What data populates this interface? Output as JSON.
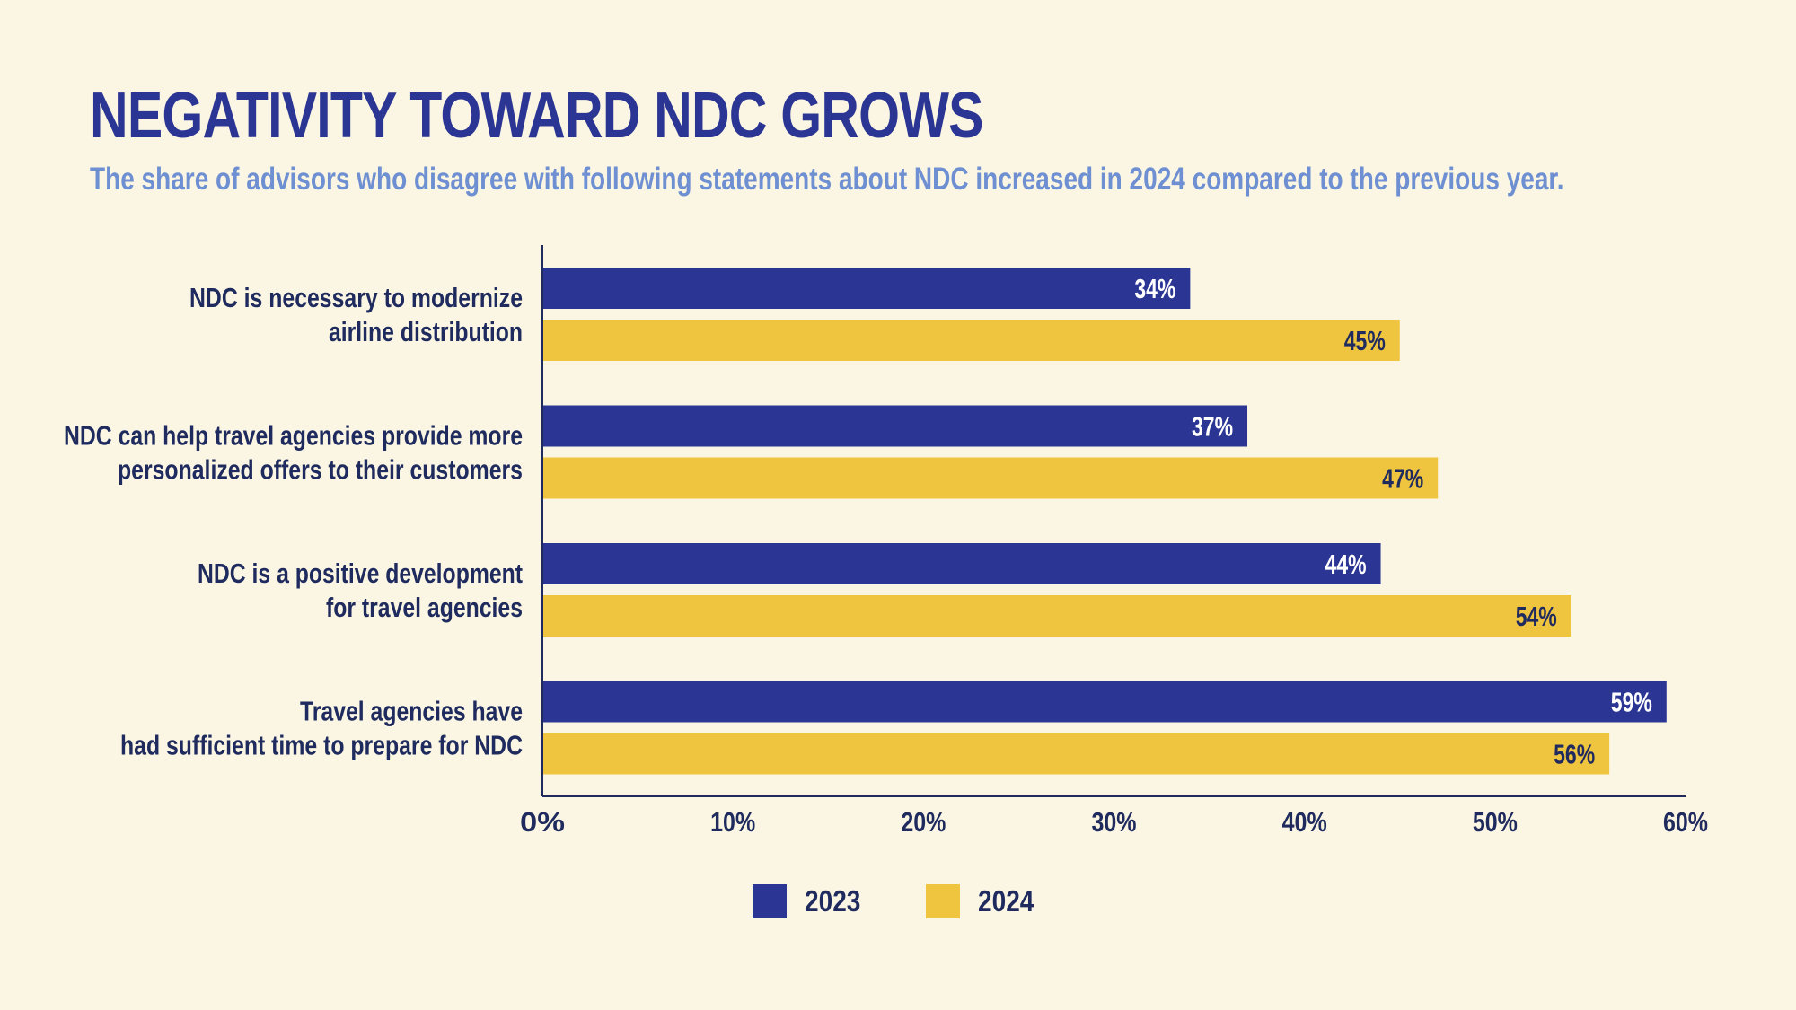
{
  "title": "NEGATIVITY TOWARD NDC GROWS",
  "subtitle": "The share of advisors who disagree with following statements about NDC increased in 2024 compared to the previous year.",
  "colors": {
    "series_2023": "#2b3593",
    "series_2024": "#efc43f",
    "text_dark": "#1f2b5e",
    "background": "#fbf6e3"
  },
  "chart_data": {
    "type": "bar",
    "orientation": "horizontal",
    "categories": [
      [
        "NDC is necessary to modernize",
        "airline distribution"
      ],
      [
        "NDC can help travel agencies provide more",
        "personalized offers to their customers"
      ],
      [
        "NDC is a positive development",
        "for travel agencies"
      ],
      [
        "Travel agencies have",
        "had sufficient time to prepare for NDC"
      ]
    ],
    "series": [
      {
        "name": "2023",
        "values": [
          34,
          37,
          44,
          59
        ],
        "labels": [
          "34%",
          "37%",
          "44%",
          "59%"
        ]
      },
      {
        "name": "2024",
        "values": [
          45,
          47,
          54,
          56
        ],
        "labels": [
          "45%",
          "47%",
          "54%",
          "56%"
        ]
      }
    ],
    "xlim": [
      0,
      60
    ],
    "xticks": [
      0,
      10,
      20,
      30,
      40,
      50,
      60
    ],
    "xtick_labels": [
      "0%",
      "10%",
      "20%",
      "30%",
      "40%",
      "50%",
      "60%"
    ],
    "grid": false,
    "legend_position": "bottom-center"
  }
}
